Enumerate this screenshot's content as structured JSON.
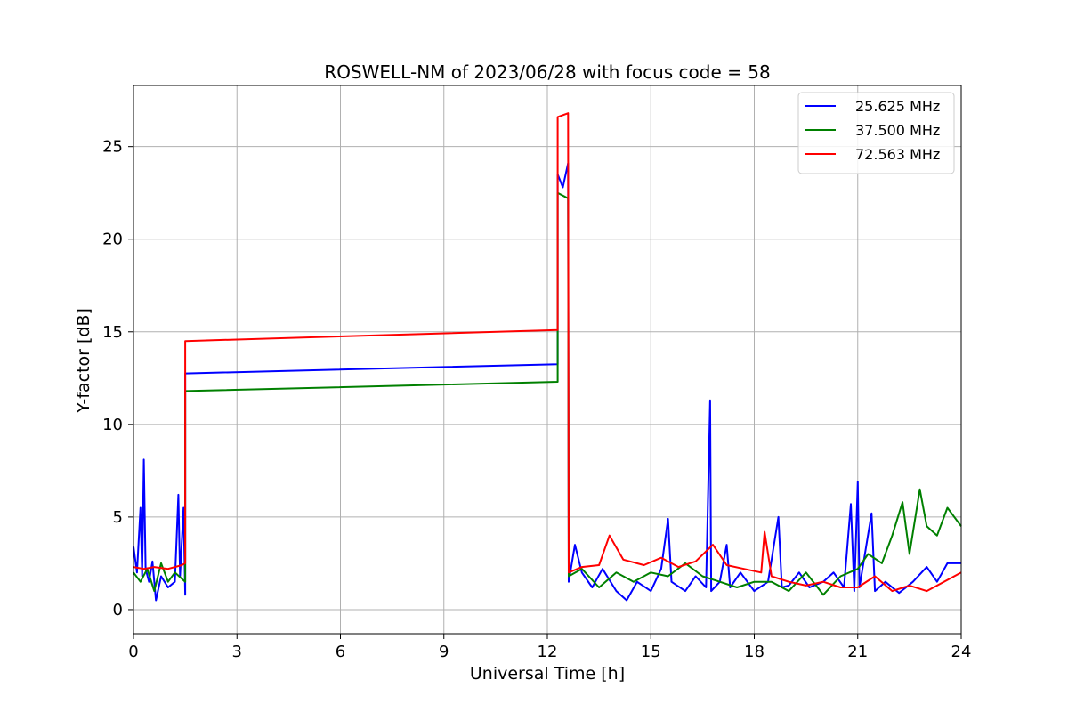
{
  "chart_data": {
    "type": "line",
    "title": "ROSWELL-NM of 2023/06/28 with focus code = 58",
    "xlabel": "Universal Time [h]",
    "ylabel": "Y-factor [dB]",
    "xlim": [
      0,
      24
    ],
    "ylim": [
      -1.3,
      28.3
    ],
    "xticks": [
      0,
      3,
      6,
      9,
      12,
      15,
      18,
      21,
      24
    ],
    "yticks": [
      0,
      5,
      10,
      15,
      20,
      25
    ],
    "grid": true,
    "legend_position": "top-right",
    "series": [
      {
        "name": "25.625 MHz",
        "color": "#0000ff",
        "points": [
          [
            0.0,
            3.4
          ],
          [
            0.1,
            2.0
          ],
          [
            0.2,
            5.5
          ],
          [
            0.25,
            1.8
          ],
          [
            0.3,
            8.1
          ],
          [
            0.35,
            2.2
          ],
          [
            0.45,
            1.5
          ],
          [
            0.55,
            2.6
          ],
          [
            0.65,
            0.5
          ],
          [
            0.8,
            1.8
          ],
          [
            1.0,
            1.2
          ],
          [
            1.2,
            1.5
          ],
          [
            1.3,
            6.2
          ],
          [
            1.35,
            1.8
          ],
          [
            1.45,
            5.5
          ],
          [
            1.5,
            0.8
          ],
          [
            1.5,
            12.75
          ],
          [
            12.3,
            13.25
          ],
          [
            12.3,
            23.5
          ],
          [
            12.45,
            22.8
          ],
          [
            12.6,
            24.1
          ],
          [
            12.62,
            1.5
          ],
          [
            12.8,
            3.5
          ],
          [
            13.0,
            2.0
          ],
          [
            13.3,
            1.2
          ],
          [
            13.6,
            2.2
          ],
          [
            14.0,
            1.0
          ],
          [
            14.3,
            0.5
          ],
          [
            14.6,
            1.5
          ],
          [
            15.0,
            1.0
          ],
          [
            15.3,
            2.2
          ],
          [
            15.5,
            4.9
          ],
          [
            15.6,
            1.5
          ],
          [
            16.0,
            1.0
          ],
          [
            16.3,
            1.8
          ],
          [
            16.6,
            1.2
          ],
          [
            16.72,
            11.3
          ],
          [
            16.75,
            1.0
          ],
          [
            17.0,
            1.5
          ],
          [
            17.2,
            3.5
          ],
          [
            17.3,
            1.2
          ],
          [
            17.6,
            2.0
          ],
          [
            18.0,
            1.0
          ],
          [
            18.4,
            1.5
          ],
          [
            18.7,
            5.0
          ],
          [
            18.8,
            1.2
          ],
          [
            19.0,
            1.3
          ],
          [
            19.3,
            2.0
          ],
          [
            19.6,
            1.2
          ],
          [
            20.0,
            1.5
          ],
          [
            20.3,
            2.0
          ],
          [
            20.6,
            1.2
          ],
          [
            20.8,
            5.7
          ],
          [
            20.9,
            1.0
          ],
          [
            21.0,
            6.9
          ],
          [
            21.05,
            1.2
          ],
          [
            21.4,
            5.2
          ],
          [
            21.5,
            1.0
          ],
          [
            21.8,
            1.5
          ],
          [
            22.2,
            0.9
          ],
          [
            22.6,
            1.5
          ],
          [
            23.0,
            2.3
          ],
          [
            23.3,
            1.5
          ],
          [
            23.6,
            2.5
          ],
          [
            24.0,
            2.5
          ]
        ]
      },
      {
        "name": "37.500 MHz",
        "color": "#008000",
        "points": [
          [
            0.0,
            2.0
          ],
          [
            0.2,
            1.5
          ],
          [
            0.4,
            2.2
          ],
          [
            0.6,
            1.0
          ],
          [
            0.8,
            2.5
          ],
          [
            1.0,
            1.5
          ],
          [
            1.2,
            2.0
          ],
          [
            1.5,
            1.5
          ],
          [
            1.5,
            11.8
          ],
          [
            12.3,
            12.3
          ],
          [
            12.3,
            22.5
          ],
          [
            12.6,
            22.2
          ],
          [
            12.62,
            1.8
          ],
          [
            13.0,
            2.2
          ],
          [
            13.5,
            1.2
          ],
          [
            14.0,
            2.0
          ],
          [
            14.5,
            1.5
          ],
          [
            15.0,
            2.0
          ],
          [
            15.5,
            1.8
          ],
          [
            16.0,
            2.5
          ],
          [
            16.5,
            1.8
          ],
          [
            17.0,
            1.5
          ],
          [
            17.5,
            1.2
          ],
          [
            18.0,
            1.5
          ],
          [
            18.5,
            1.5
          ],
          [
            19.0,
            1.0
          ],
          [
            19.5,
            2.0
          ],
          [
            20.0,
            0.8
          ],
          [
            20.5,
            1.8
          ],
          [
            21.0,
            2.2
          ],
          [
            21.3,
            3.0
          ],
          [
            21.7,
            2.5
          ],
          [
            22.0,
            4.0
          ],
          [
            22.3,
            5.8
          ],
          [
            22.5,
            3.0
          ],
          [
            22.8,
            6.5
          ],
          [
            23.0,
            4.5
          ],
          [
            23.3,
            4.0
          ],
          [
            23.6,
            5.5
          ],
          [
            24.0,
            4.5
          ]
        ]
      },
      {
        "name": "72.563 MHz",
        "color": "#ff0000",
        "points": [
          [
            0.0,
            2.3
          ],
          [
            0.3,
            2.2
          ],
          [
            0.6,
            2.3
          ],
          [
            1.0,
            2.2
          ],
          [
            1.4,
            2.4
          ],
          [
            1.5,
            2.5
          ],
          [
            1.5,
            14.5
          ],
          [
            12.3,
            15.1
          ],
          [
            12.3,
            26.6
          ],
          [
            12.6,
            26.8
          ],
          [
            12.62,
            2.0
          ],
          [
            13.0,
            2.3
          ],
          [
            13.5,
            2.4
          ],
          [
            13.8,
            4.0
          ],
          [
            14.2,
            2.7
          ],
          [
            14.8,
            2.4
          ],
          [
            15.3,
            2.8
          ],
          [
            15.8,
            2.3
          ],
          [
            16.3,
            2.6
          ],
          [
            16.8,
            3.5
          ],
          [
            17.2,
            2.4
          ],
          [
            17.7,
            2.2
          ],
          [
            18.2,
            2.0
          ],
          [
            18.3,
            4.2
          ],
          [
            18.5,
            1.8
          ],
          [
            19.0,
            1.5
          ],
          [
            19.5,
            1.3
          ],
          [
            20.0,
            1.5
          ],
          [
            20.5,
            1.2
          ],
          [
            21.0,
            1.2
          ],
          [
            21.5,
            1.8
          ],
          [
            22.0,
            1.0
          ],
          [
            22.5,
            1.3
          ],
          [
            23.0,
            1.0
          ],
          [
            23.5,
            1.5
          ],
          [
            24.0,
            2.0
          ]
        ]
      }
    ]
  }
}
